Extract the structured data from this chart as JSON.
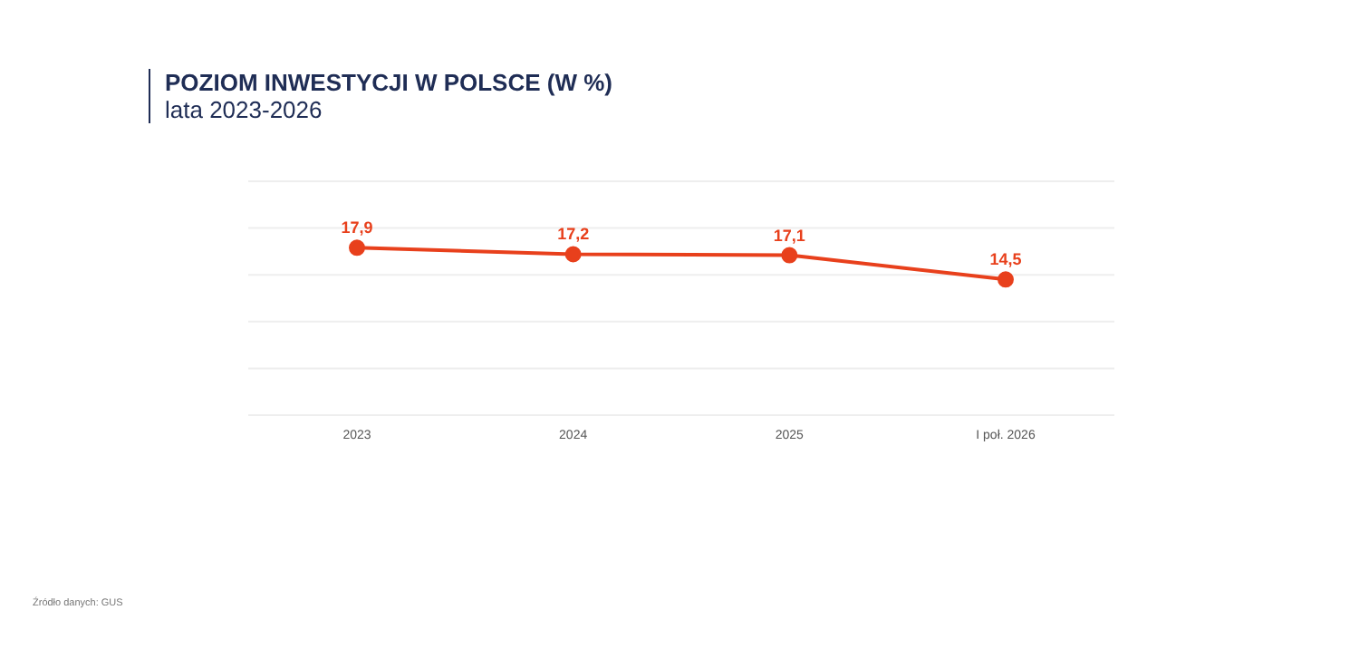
{
  "chart_data": {
    "type": "line",
    "title": "POZIOM INWESTYCJI W POLSCE (W %)",
    "subtitle": "lata 2023-2026",
    "categories": [
      "2023",
      "2024",
      "2025",
      "I poł. 2026"
    ],
    "series": [
      {
        "color": "#e8401c",
        "values": [
          17.9,
          17.2,
          17.1,
          14.5
        ],
        "value_labels": [
          "17,9",
          "17,2",
          "17,1",
          "14,5"
        ]
      }
    ],
    "ylim": [
      0,
      25
    ],
    "yticks": [
      {
        "value": 0,
        "label": null
      },
      {
        "value": 5,
        "label": null
      },
      {
        "value": 10,
        "label": null
      },
      {
        "value": 15,
        "label": null
      },
      {
        "value": 20,
        "label": null
      },
      {
        "value": 25,
        "label": null
      }
    ],
    "tick_labels": "x",
    "grid": "y",
    "marker": "circle",
    "line_style": "solid",
    "legend": false,
    "annotations": [
      "Źródło danych: GUS"
    ]
  }
}
